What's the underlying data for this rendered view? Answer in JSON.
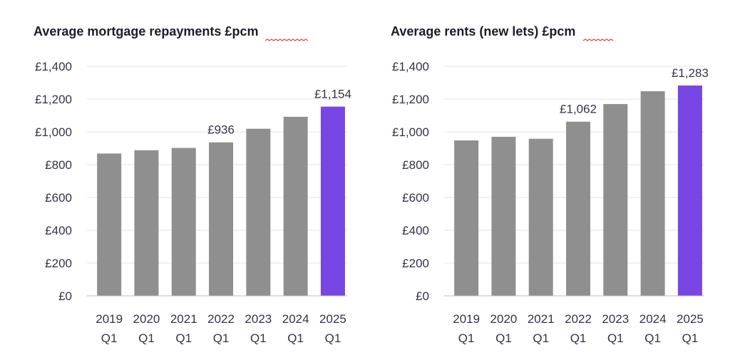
{
  "colors": {
    "bar": "#8f8f8f",
    "highlight": "#7746e5",
    "grid": "#e3e3e3"
  },
  "chart_data": [
    {
      "type": "bar",
      "title": "Average mortgage repayments £pcm",
      "title_lines": [
        "Average mortgage repayments ",
        "£pcm"
      ],
      "categories": [
        [
          "2019",
          "Q1"
        ],
        [
          "2020",
          "Q1"
        ],
        [
          "2021",
          "Q1"
        ],
        [
          "2022",
          "Q1"
        ],
        [
          "2023",
          "Q1"
        ],
        [
          "2024",
          "Q1"
        ],
        [
          "2025",
          "Q1"
        ]
      ],
      "values": [
        868,
        888,
        902,
        936,
        1019,
        1092,
        1154
      ],
      "highlight_index": 6,
      "data_labels": [
        {
          "index": 3,
          "text": "£936"
        },
        {
          "index": 6,
          "text": "£1,154"
        }
      ],
      "yticks": [
        "£0",
        "£200",
        "£400",
        "£600",
        "£800",
        "£1,000",
        "£1,200",
        "£1,400"
      ],
      "ylim": [
        0,
        1400
      ],
      "grid": true,
      "xlabel": "",
      "ylabel": ""
    },
    {
      "type": "bar",
      "title": "Average rents (new lets) £pcm",
      "title_lines": [
        "Average rents (new lets) ",
        "£pcm"
      ],
      "categories": [
        [
          "2019",
          "Q1"
        ],
        [
          "2020",
          "Q1"
        ],
        [
          "2021",
          "Q1"
        ],
        [
          "2022",
          "Q1"
        ],
        [
          "2023",
          "Q1"
        ],
        [
          "2024",
          "Q1"
        ],
        [
          "2025",
          "Q1"
        ]
      ],
      "values": [
        948,
        970,
        958,
        1062,
        1170,
        1248,
        1283
      ],
      "highlight_index": 6,
      "data_labels": [
        {
          "index": 3,
          "text": "£1,062"
        },
        {
          "index": 6,
          "text": "£1,283"
        }
      ],
      "yticks": [
        "£0",
        "£200",
        "£400",
        "£600",
        "£800",
        "£1,000",
        "£1,200",
        "£1,400"
      ],
      "ylim": [
        0,
        1400
      ],
      "grid": true,
      "xlabel": "",
      "ylabel": ""
    }
  ]
}
